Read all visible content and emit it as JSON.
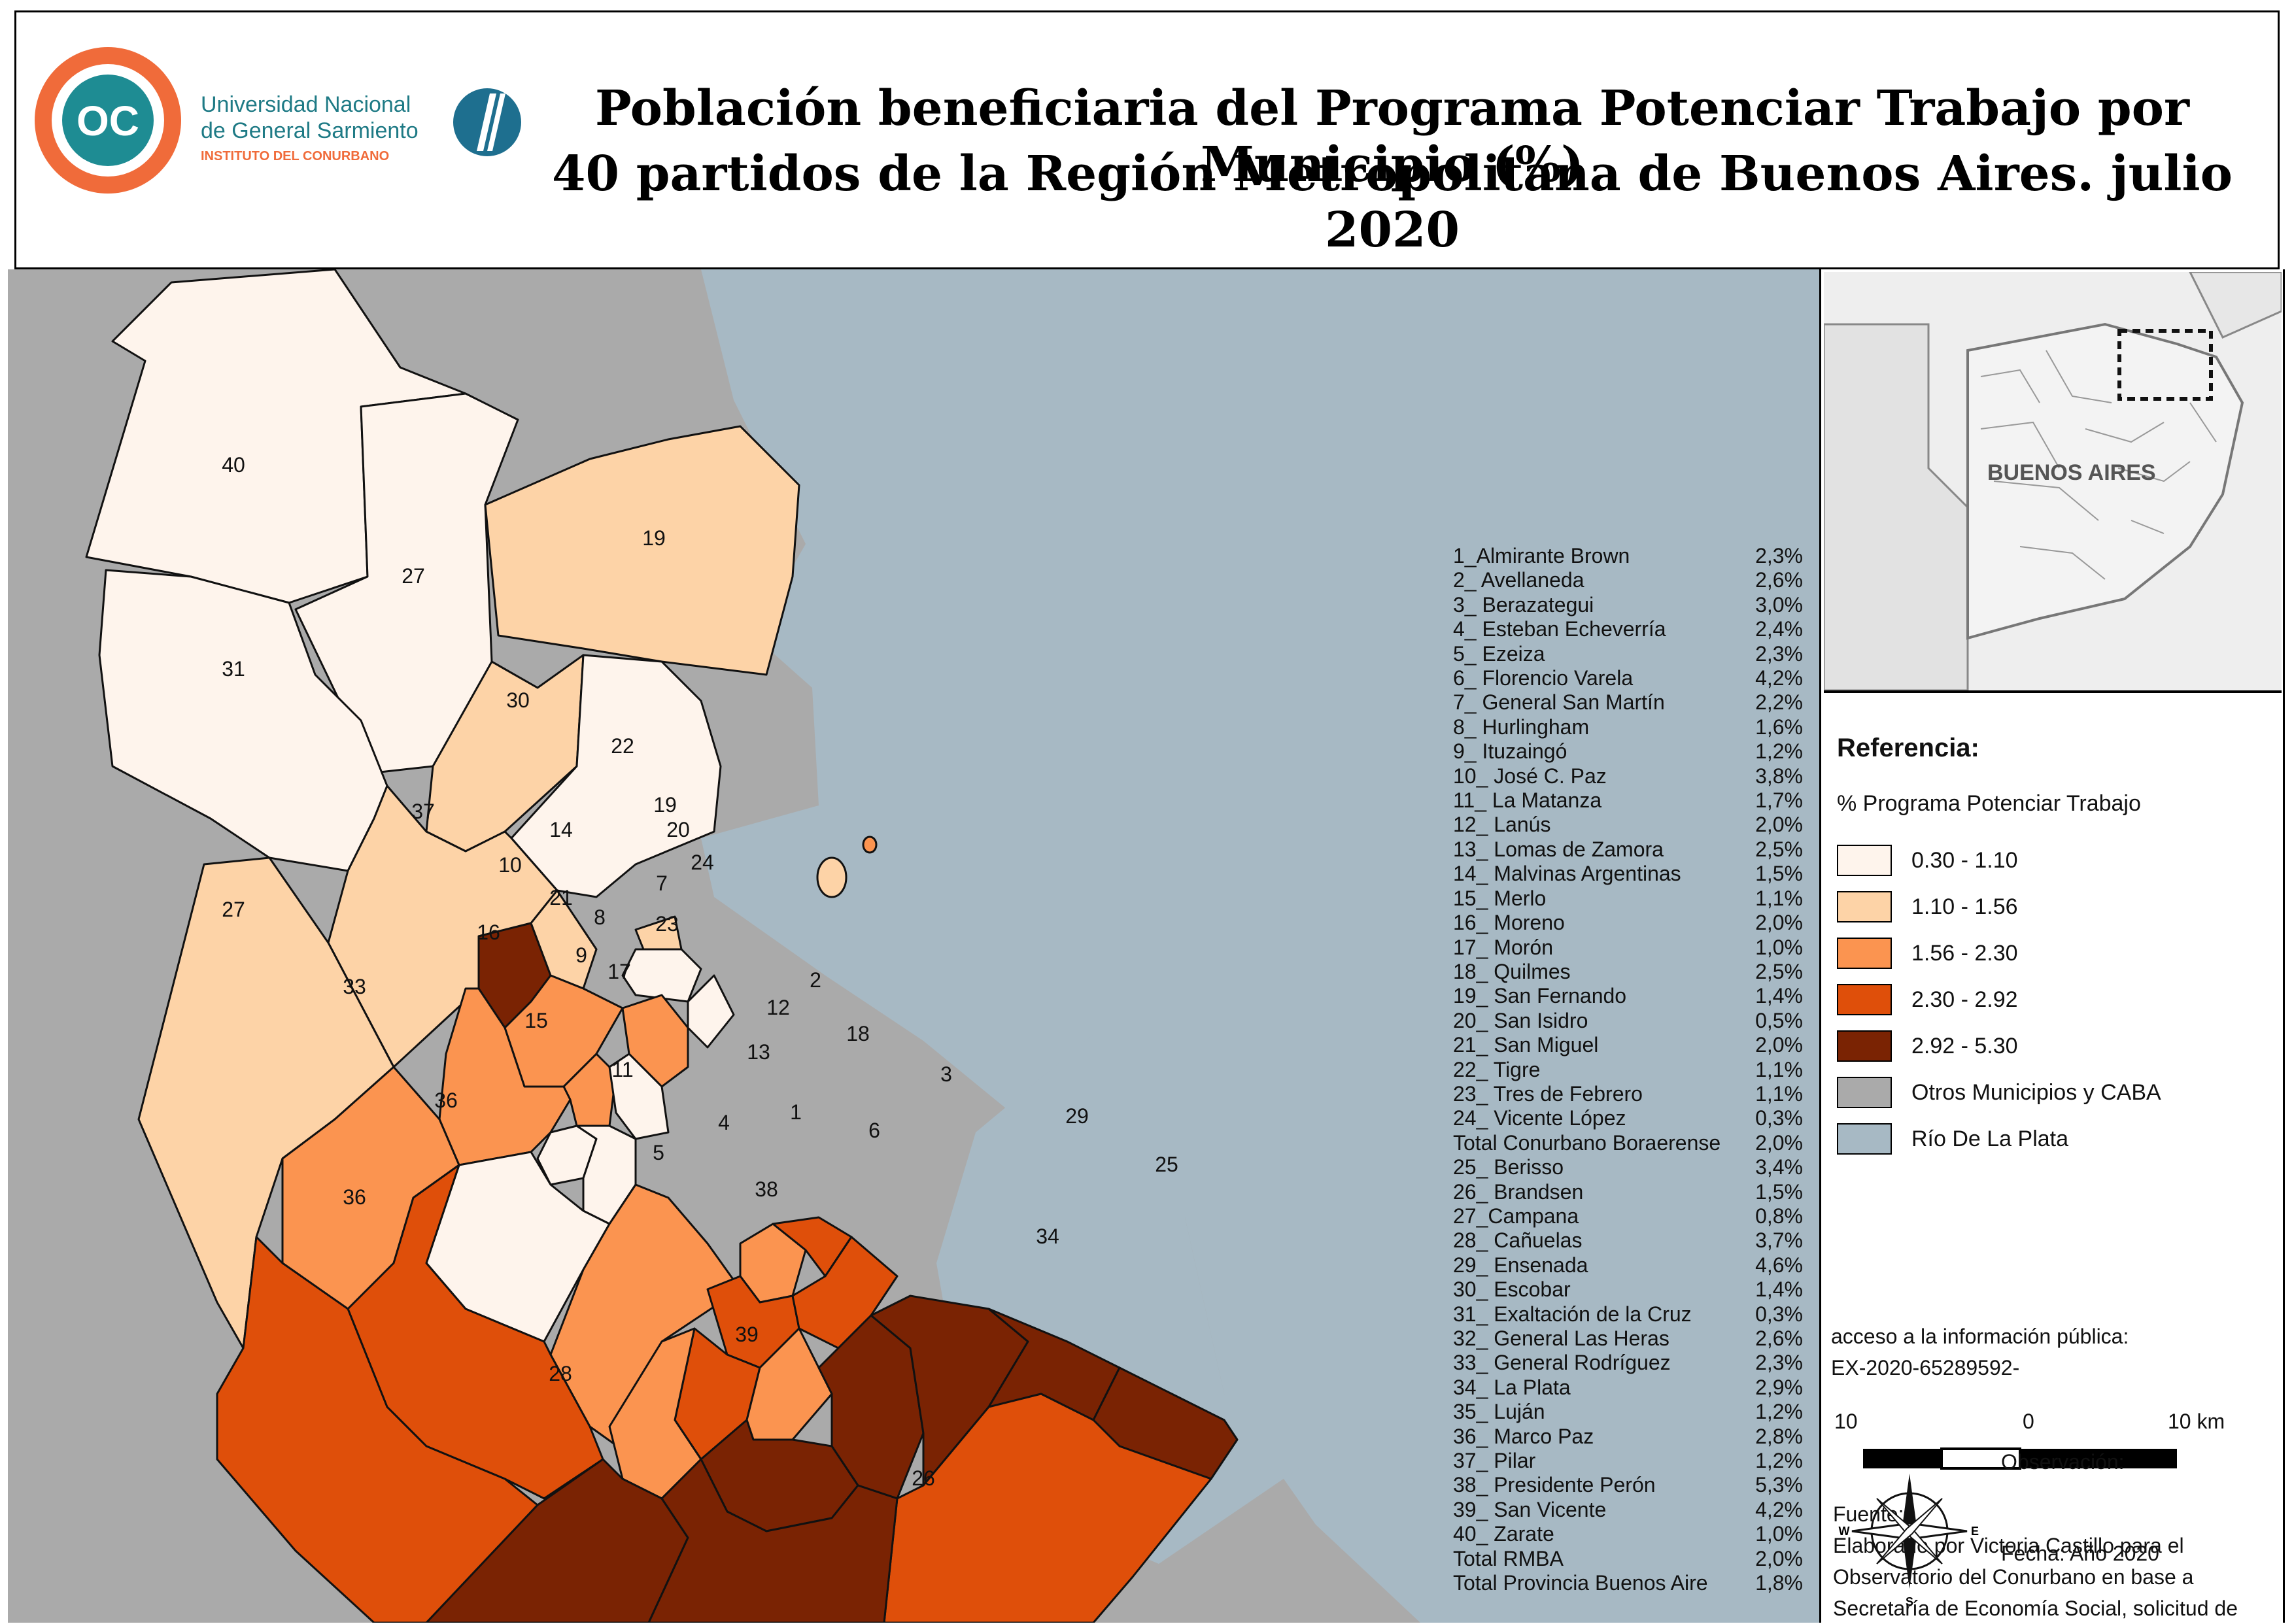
{
  "header": {
    "logo_text": "OC",
    "institution_line1": "Universidad Nacional",
    "institution_line2": "de General Sarmiento",
    "institution_line3": "INSTITUTO DEL CONURBANO",
    "title_line1": "Población beneficiaria del  Programa Potenciar Trabajo por Municipio (%)",
    "title_line2": "40 partidos de la Región Metropolitana de Buenos Aires. julio 2020"
  },
  "colors": {
    "class1": "#fef4ec",
    "class2": "#fdd3a7",
    "class3": "#fb9450",
    "class4": "#df4f0a",
    "class5": "#7a2303",
    "otros": "#aaaaaa",
    "rio": "#a7b9c4"
  },
  "map_labels": {
    "m1": "1",
    "m2": "2",
    "m3": "3",
    "m4": "4",
    "m5": "5",
    "m6": "6",
    "m7": "7",
    "m8": "8",
    "m9": "9",
    "m10": "10",
    "m11": "11",
    "m12": "12",
    "m13": "13",
    "m14": "14",
    "m15": "15",
    "m16": "16",
    "m17": "17",
    "m18": "18",
    "m19a": "19",
    "m19b": "19",
    "m20": "20",
    "m21": "21",
    "m22": "22",
    "m23": "23",
    "m24": "24",
    "m25": "25",
    "m26": "26",
    "m27a": "27",
    "m27b": "27",
    "m28": "28",
    "m29": "29",
    "m30": "30",
    "m31": "31",
    "m33": "33",
    "m34": "34",
    "m36a": "36",
    "m36b": "36",
    "m37": "37",
    "m38": "38",
    "m39": "39",
    "m40": "40"
  },
  "stats": [
    {
      "name": "1_Almirante Brown",
      "value": "2,3%"
    },
    {
      "name": "2_ Avellaneda",
      "value": "2,6%"
    },
    {
      "name": "3_ Berazategui",
      "value": "3,0%"
    },
    {
      "name": "4_ Esteban Echeverría",
      "value": "2,4%"
    },
    {
      "name": "5_ Ezeiza",
      "value": "2,3%"
    },
    {
      "name": "6_ Florencio Varela",
      "value": "4,2%"
    },
    {
      "name": "7_ General San Martín",
      "value": "2,2%"
    },
    {
      "name": "8_ Hurlingham",
      "value": "1,6%"
    },
    {
      "name": "9_ Ituzaingó",
      "value": "1,2%"
    },
    {
      "name": "10_ José C. Paz",
      "value": "3,8%"
    },
    {
      "name": "11_ La Matanza",
      "value": "1,7%"
    },
    {
      "name": "12_ Lanús",
      "value": "2,0%"
    },
    {
      "name": "13_ Lomas de Zamora",
      "value": "2,5%"
    },
    {
      "name": "14_ Malvinas Argentinas",
      "value": "1,5%"
    },
    {
      "name": "15_ Merlo",
      "value": "1,1%"
    },
    {
      "name": "16_ Moreno",
      "value": "2,0%"
    },
    {
      "name": "17_ Morón",
      "value": "1,0%"
    },
    {
      "name": "18_ Quilmes",
      "value": "2,5%"
    },
    {
      "name": "19_ San Fernando",
      "value": "1,4%"
    },
    {
      "name": "20_ San Isidro",
      "value": "0,5%"
    },
    {
      "name": "21_ San Miguel",
      "value": "2,0%"
    },
    {
      "name": "22_ Tigre",
      "value": "1,1%"
    },
    {
      "name": "23_ Tres de Febrero",
      "value": "1,1%"
    },
    {
      "name": "24_ Vicente López",
      "value": "0,3%"
    },
    {
      "name": "Total Conurbano Boraerense",
      "value": "2,0%"
    },
    {
      "name": "25_ Berisso",
      "value": "3,4%"
    },
    {
      "name": "26_ Brandsen",
      "value": "1,5%"
    },
    {
      "name": "27_Campana",
      "value": "0,8%"
    },
    {
      "name": "28_ Cañuelas",
      "value": "3,7%"
    },
    {
      "name": "29_ Ensenada",
      "value": "4,6%"
    },
    {
      "name": "30_ Escobar",
      "value": "1,4%"
    },
    {
      "name": "31_ Exaltación de la Cruz",
      "value": "0,3%"
    },
    {
      "name": "32_ General Las Heras",
      "value": "2,6%"
    },
    {
      "name": "33_ General Rodríguez",
      "value": "2,3%"
    },
    {
      "name": "34_ La Plata",
      "value": "2,9%"
    },
    {
      "name": "35_ Luján",
      "value": "1,2%"
    },
    {
      "name": "36_ Marco Paz",
      "value": "2,8%"
    },
    {
      "name": "37_ Pilar",
      "value": "1,2%"
    },
    {
      "name": "38_ Presidente Perón",
      "value": "5,3%"
    },
    {
      "name": "39_ San Vicente",
      "value": "4,2%"
    },
    {
      "name": "40_ Zarate",
      "value": "1,0%"
    },
    {
      "name": "Total  RMBA",
      "value": "2,0%"
    },
    {
      "name": "Total Provincia Buenos Aire",
      "value": "1,8%"
    }
  ],
  "inset": {
    "label": "BUENOS AIRES"
  },
  "legend": {
    "title": "Referencia:",
    "subtitle": "% Programa Potenciar Trabajo",
    "items": [
      {
        "label": "0.30 - 1.10",
        "color": "#fef4ec"
      },
      {
        "label": "1.10 - 1.56",
        "color": "#fdd3a7"
      },
      {
        "label": "1.56 - 2.30",
        "color": "#fb9450"
      },
      {
        "label": "2.30 - 2.92",
        "color": "#df4f0a"
      },
      {
        "label": "2.92 - 5.30",
        "color": "#7a2303"
      },
      {
        "label": "Otros Municipios y CABA",
        "color": "#aaaaaa"
      },
      {
        "label": "Río De La Plata",
        "color": "#a7b9c4"
      }
    ]
  },
  "scale": {
    "left": "10",
    "center": "0",
    "right": "10 km"
  },
  "source": {
    "title": "Fuente:",
    "line1": "Elaborado por Victoria Castillo para el",
    "line2": "Observatorio del Conurbano en base  a",
    "line3": "Secretaría de Economía Social, solicitud de",
    "line4": "acceso a la información pública:",
    "line5": "EX-2020-65289592-"
  },
  "observacion": "Observación:",
  "fecha": "Fecha: Año 2020",
  "compass": {
    "n": "N",
    "s": "S",
    "e": "E",
    "w": "W"
  }
}
